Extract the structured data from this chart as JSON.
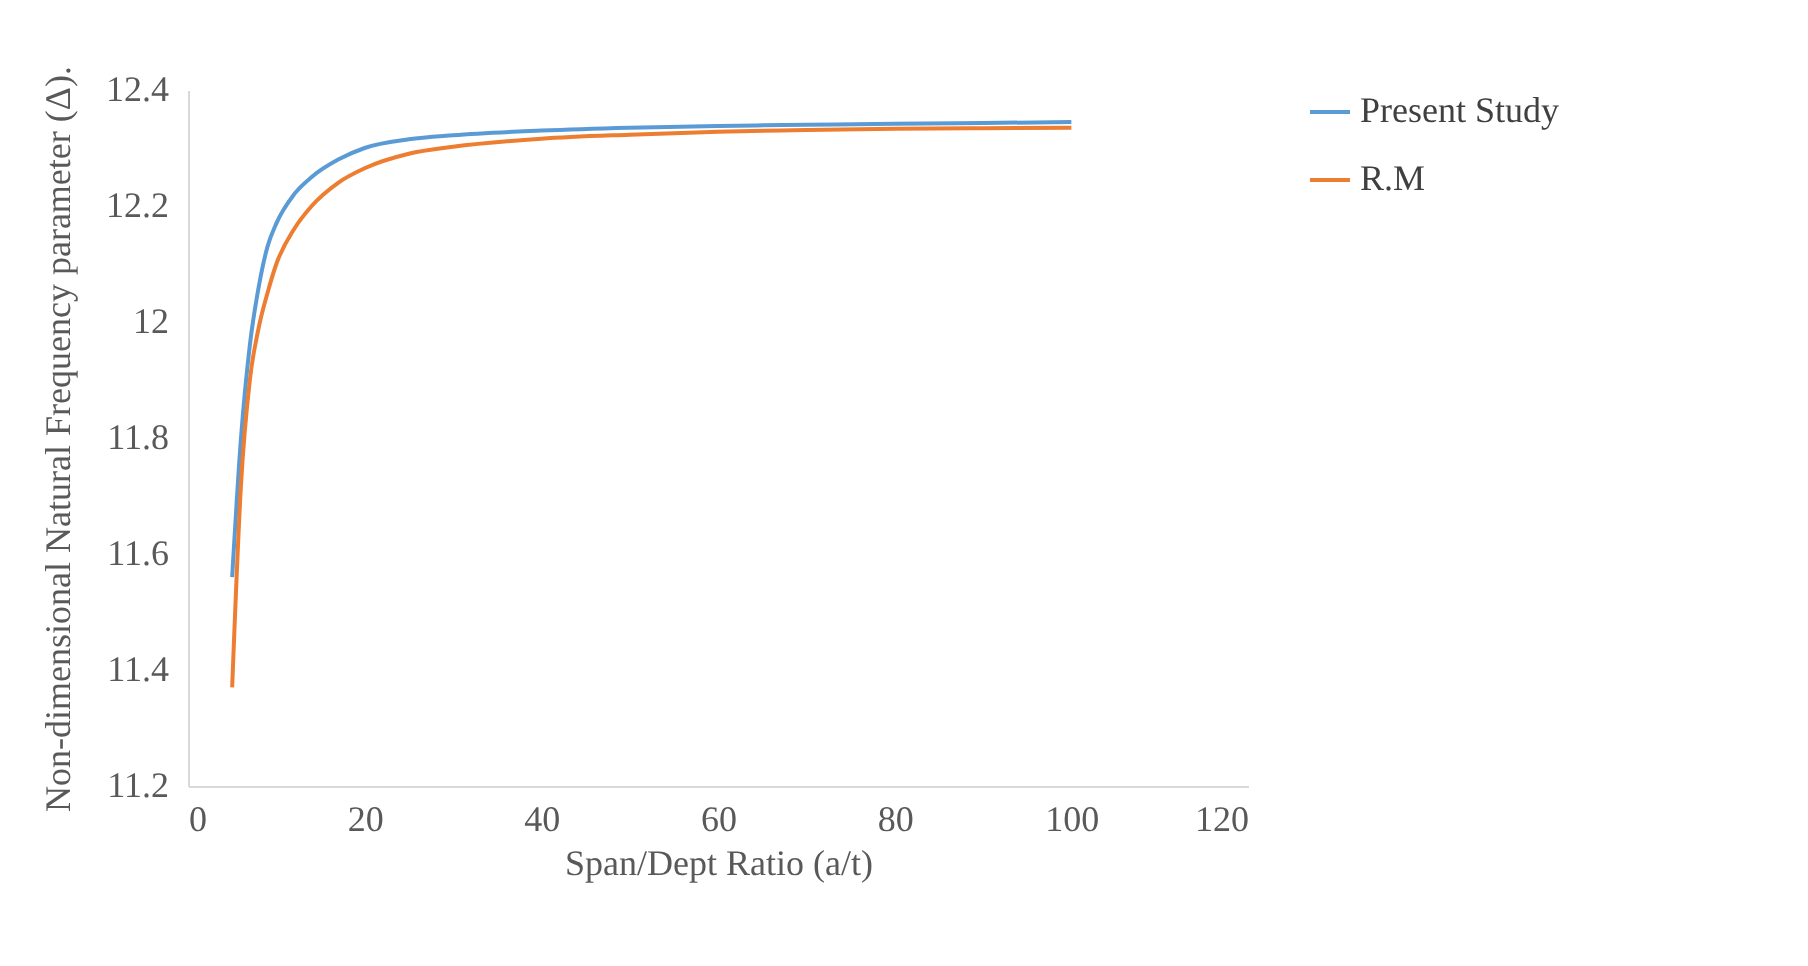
{
  "chart_data": {
    "type": "line",
    "xlabel": "Span/Dept Ratio (a/t)",
    "ylabel": "Non-dimensional  Natural Frequency parameter (Δ).",
    "x": [
      5,
      6,
      7,
      8,
      9,
      10,
      12,
      14,
      17,
      20,
      25,
      30,
      40,
      50,
      60,
      70,
      80,
      90,
      100
    ],
    "series": [
      {
        "name": "Present Study",
        "color": "#5b9bd5",
        "values": [
          11.56,
          11.8,
          11.96,
          12.06,
          12.13,
          12.17,
          12.22,
          12.25,
          12.28,
          12.3,
          12.315,
          12.322,
          12.33,
          12.335,
          12.338,
          12.34,
          12.342,
          12.343,
          12.345
        ]
      },
      {
        "name": "R.M",
        "color": "#ed7d31",
        "values": [
          11.37,
          11.72,
          11.9,
          11.99,
          12.05,
          12.1,
          12.16,
          12.2,
          12.24,
          12.265,
          12.29,
          12.302,
          12.316,
          12.323,
          12.328,
          12.331,
          12.333,
          12.334,
          12.335
        ]
      }
    ],
    "xlim": [
      0,
      120
    ],
    "xticks": [
      0,
      20,
      40,
      60,
      80,
      100,
      120
    ],
    "ylim": [
      11.2,
      12.4
    ],
    "yticks": [
      11.2,
      11.4,
      11.6,
      11.8,
      12,
      12.2,
      12.4
    ],
    "grid": false,
    "legend": "right",
    "marker": "none",
    "line_style": "solid"
  }
}
